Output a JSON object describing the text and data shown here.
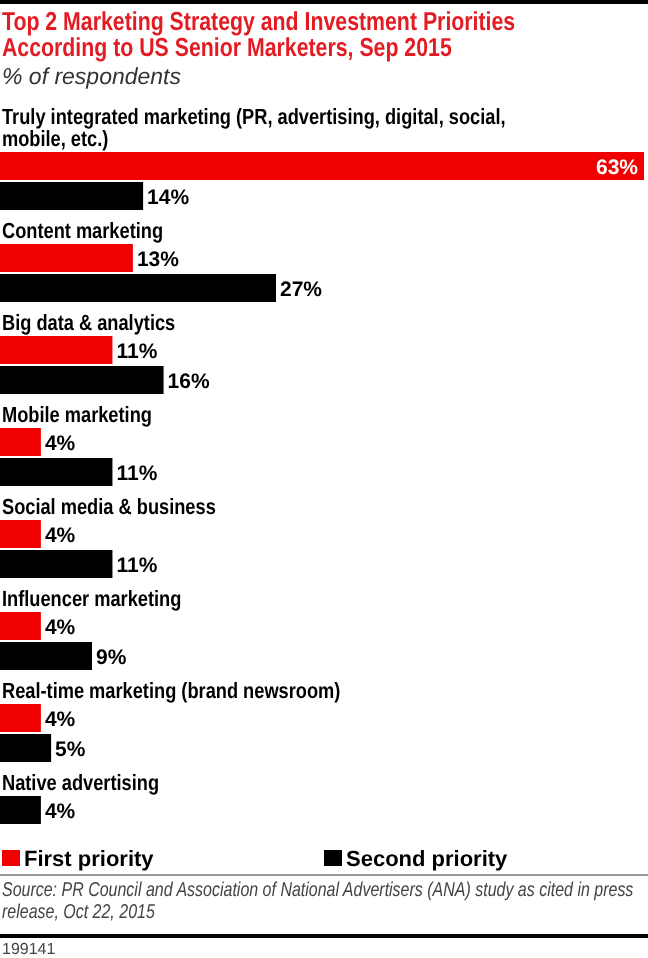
{
  "chart_data": {
    "type": "bar",
    "orientation": "horizontal",
    "title": "Top 2 Marketing Strategy and Investment Priorities According to US Senior Marketers, Sep 2015",
    "subtitle": "% of respondents",
    "categories": [
      "Truly integrated marketing (PR, advertising, digital, social, mobile, etc.)",
      "Content marketing",
      "Big data & analytics",
      "Mobile marketing",
      "Social media & business",
      "Influencer marketing",
      "Real-time marketing (brand newsroom)",
      "Native advertising"
    ],
    "series": [
      {
        "name": "First priority",
        "color": "#f00000",
        "values": [
          63,
          13,
          11,
          4,
          4,
          4,
          4,
          null
        ],
        "value_labels": [
          "63%",
          "13%",
          "11%",
          "4%",
          "4%",
          "4%",
          "4%",
          null
        ]
      },
      {
        "name": "Second priority",
        "color": "#000000",
        "values": [
          14,
          27,
          16,
          11,
          11,
          9,
          5,
          4
        ],
        "value_labels": [
          "14%",
          "27%",
          "16%",
          "11%",
          "11%",
          "9%",
          "5%",
          "4%"
        ]
      }
    ],
    "legend": "bottom",
    "annotations": [
      "Source: PR Council and Association of National Advertisers (ANA) study as cited in press release, Oct 22, 2015",
      "199141"
    ]
  }
}
